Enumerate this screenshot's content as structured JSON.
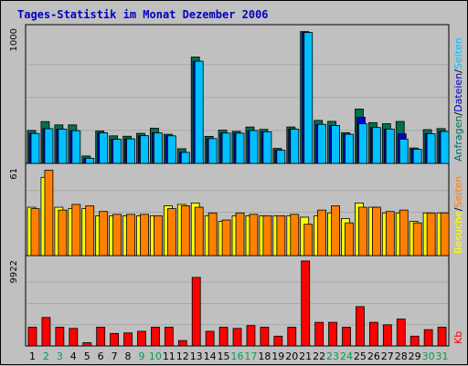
{
  "title": "Tages-Statistik im Monat Dezember 2006",
  "chart_data": [
    {
      "type": "bar",
      "panel": "top",
      "ymax_label": "1000",
      "ylim": [
        0,
        1000
      ],
      "legend": [
        {
          "label": "Anfragen",
          "color": "#006c5c"
        },
        {
          "label": "Dateien",
          "color": "#0000c8"
        },
        {
          "label": "Seiten",
          "color": "#00c0ff"
        }
      ],
      "series": [
        {
          "name": "Anfragen",
          "color": "#007050",
          "values": [
            250,
            317,
            292,
            292,
            56,
            246,
            209,
            206,
            228,
            267,
            221,
            111,
            807,
            205,
            252,
            243,
            276,
            258,
            114,
            276,
            1000,
            326,
            319,
            233,
            412,
            309,
            301,
            318,
            117,
            256,
            264
          ]
        },
        {
          "name": "Dateien",
          "color": "#0000c8",
          "values": [
            227,
            263,
            259,
            248,
            39,
            231,
            183,
            186,
            210,
            231,
            209,
            83,
            775,
            188,
            230,
            229,
            249,
            240,
            100,
            259,
            993,
            296,
            287,
            221,
            350,
            272,
            260,
            224,
            107,
            225,
            242
          ]
        },
        {
          "name": "Seiten",
          "color": "#00c0ff",
          "values": [
            227,
            263,
            259,
            248,
            39,
            231,
            183,
            186,
            210,
            231,
            209,
            83,
            775,
            188,
            230,
            229,
            249,
            240,
            100,
            259,
            993,
            296,
            287,
            221,
            301,
            272,
            260,
            184,
            107,
            225,
            242
          ]
        }
      ]
    },
    {
      "type": "bar",
      "panel": "middle",
      "ymax_label": "61",
      "ylim": [
        0,
        61
      ],
      "legend": [
        {
          "label": "Besuche",
          "color": "#ffff00"
        },
        {
          "label": "Seiten",
          "color": "#ff8000"
        }
      ],
      "series": [
        {
          "name": "Besuche",
          "color": "#ffff00",
          "values": [
            34,
            55,
            34,
            33,
            33,
            28,
            28,
            28,
            28,
            28,
            35,
            36,
            37,
            28,
            24,
            28,
            28,
            28,
            28,
            28,
            27,
            28,
            30,
            26,
            37,
            34,
            30,
            30,
            24,
            30,
            30
          ]
        },
        {
          "name": "Seiten",
          "color": "#ff8000",
          "values": [
            33,
            60,
            32,
            36,
            35,
            31,
            29,
            29,
            29,
            28,
            33,
            35,
            34,
            30,
            25,
            30,
            29,
            28,
            28,
            29,
            22,
            32,
            35,
            23,
            34,
            34,
            31,
            32,
            23,
            30,
            30
          ]
        }
      ]
    },
    {
      "type": "bar",
      "panel": "bottom",
      "ymax_label": "9922",
      "ylim": [
        0,
        9922
      ],
      "legend": [
        {
          "label": "Kb",
          "color": "#ff0000"
        }
      ],
      "series": [
        {
          "name": "Kb",
          "color": "#ff0000",
          "values": [
            2185,
            3323,
            2185,
            2050,
            380,
            2185,
            1460,
            1520,
            1710,
            2185,
            2185,
            630,
            8005,
            1710,
            2185,
            2050,
            2380,
            2185,
            1140,
            2185,
            9922,
            2756,
            2756,
            2185,
            4590,
            2756,
            2470,
            3137,
            1140,
            1900,
            2185
          ]
        }
      ]
    }
  ],
  "x_labels": [
    "1",
    "2",
    "3",
    "4",
    "5",
    "6",
    "7",
    "8",
    "9",
    "10",
    "11",
    "12",
    "13",
    "14",
    "15",
    "16",
    "17",
    "18",
    "19",
    "20",
    "21",
    "22",
    "23",
    "24",
    "25",
    "26",
    "27",
    "28",
    "29",
    "30",
    "31"
  ],
  "weekend_days": [
    2,
    3,
    9,
    10,
    16,
    17,
    23,
    24,
    30,
    31
  ],
  "colors": {
    "title": "#0000c0",
    "weekday": "#000000",
    "weekend": "#00a050",
    "panel_bg": "#c0c0c0",
    "grid": "#a8a8a8",
    "separator": "#000000",
    "legend_sep": "#000000"
  }
}
